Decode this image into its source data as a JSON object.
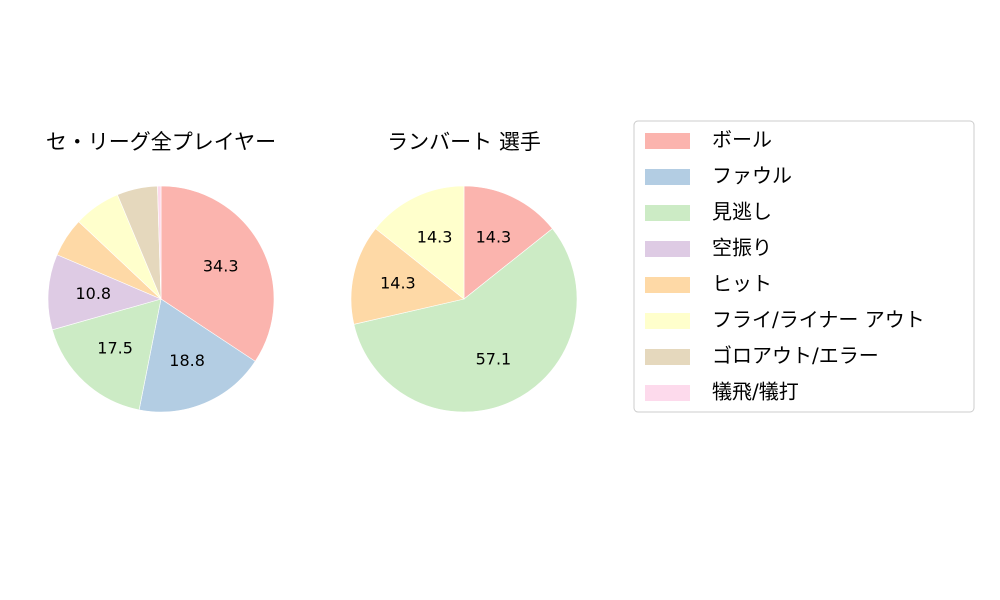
{
  "chart_data": [
    {
      "type": "pie",
      "title": "セ・リーグ全プレイヤー",
      "categories": [
        "ボール",
        "ファウル",
        "見逃し",
        "空振り",
        "ヒット",
        "フライ/ライナー アウト",
        "ゴロアウト/エラー",
        "犠飛/犠打"
      ],
      "values": [
        34.3,
        18.8,
        17.5,
        10.8,
        5.6,
        6.7,
        5.8,
        0.5
      ],
      "value_labels": [
        "34.3",
        "18.8",
        "17.5",
        "10.8",
        "",
        "",
        "",
        ""
      ]
    },
    {
      "type": "pie",
      "title": "ランバート  選手",
      "categories": [
        "ボール",
        "ファウル",
        "見逃し",
        "空振り",
        "ヒット",
        "フライ/ライナー アウト",
        "ゴロアウト/エラー",
        "犠飛/犠打"
      ],
      "values": [
        14.3,
        0,
        57.1,
        0,
        14.3,
        14.3,
        0,
        0
      ],
      "value_labels": [
        "14.3",
        "",
        "57.1",
        "",
        "14.3",
        "14.3",
        "",
        ""
      ]
    }
  ],
  "legend": {
    "placement": "right",
    "items": [
      {
        "label": "ボール",
        "color": "#fbb4ae"
      },
      {
        "label": "ファウル",
        "color": "#b3cde3"
      },
      {
        "label": "見逃し",
        "color": "#ccebc5"
      },
      {
        "label": "空振り",
        "color": "#decbe4"
      },
      {
        "label": "ヒット",
        "color": "#fed9a6"
      },
      {
        "label": "フライ/ライナー アウト",
        "color": "#ffffcc"
      },
      {
        "label": "ゴロアウト/エラー",
        "color": "#e5d8bd"
      },
      {
        "label": "犠飛/犠打",
        "color": "#fddaec"
      }
    ]
  }
}
